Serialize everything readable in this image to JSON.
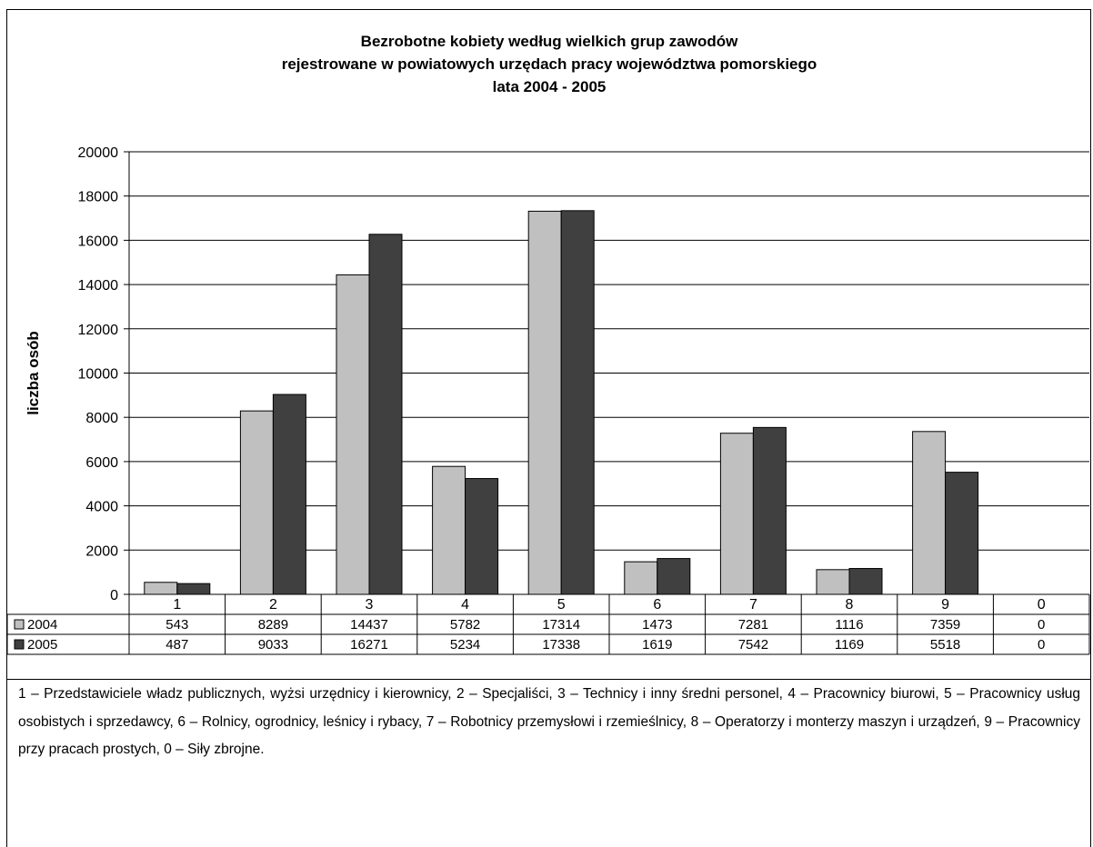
{
  "chart_data": {
    "type": "bar",
    "title_lines": [
      "Bezrobotne kobiety według wielkich grup zawodów",
      "rejestrowane w powiatowych urzędach pracy województwa pomorskiego",
      "lata 2004 - 2005"
    ],
    "ylabel": "liczba osób",
    "ylim": [
      0,
      20000
    ],
    "yticks": [
      "0",
      "2000",
      "4000",
      "6000",
      "8000",
      "10000",
      "12000",
      "14000",
      "16000",
      "18000",
      "20000"
    ],
    "categories": [
      "1",
      "2",
      "3",
      "4",
      "5",
      "6",
      "7",
      "8",
      "9",
      "0"
    ],
    "series": [
      {
        "name": "2004",
        "color": "#c0c0c0",
        "values": [
          543,
          8289,
          14437,
          5782,
          17314,
          1473,
          7281,
          1116,
          7359,
          0
        ]
      },
      {
        "name": "2005",
        "color": "#404040",
        "values": [
          487,
          9033,
          16271,
          5234,
          17338,
          1619,
          7542,
          1169,
          5518,
          0
        ]
      }
    ],
    "grid": true,
    "legend": "data-table"
  },
  "caption": "1 – Przedstawiciele władz publicznych, wyżsi urzędnicy i kierownicy, 2 – Specjaliści, 3 – Technicy i inny średni personel, 4 – Pracownicy biurowi, 5 – Pracownicy usług osobistych i sprzedawcy, 6 – Rolnicy, ogrodnicy, leśnicy i rybacy, 7 – Robotnicy przemysłowi i rzemieślnicy, 8 – Operatorzy i monterzy maszyn i urządzeń, 9 – Pracownicy przy pracach prostych, 0 – Siły zbrojne."
}
